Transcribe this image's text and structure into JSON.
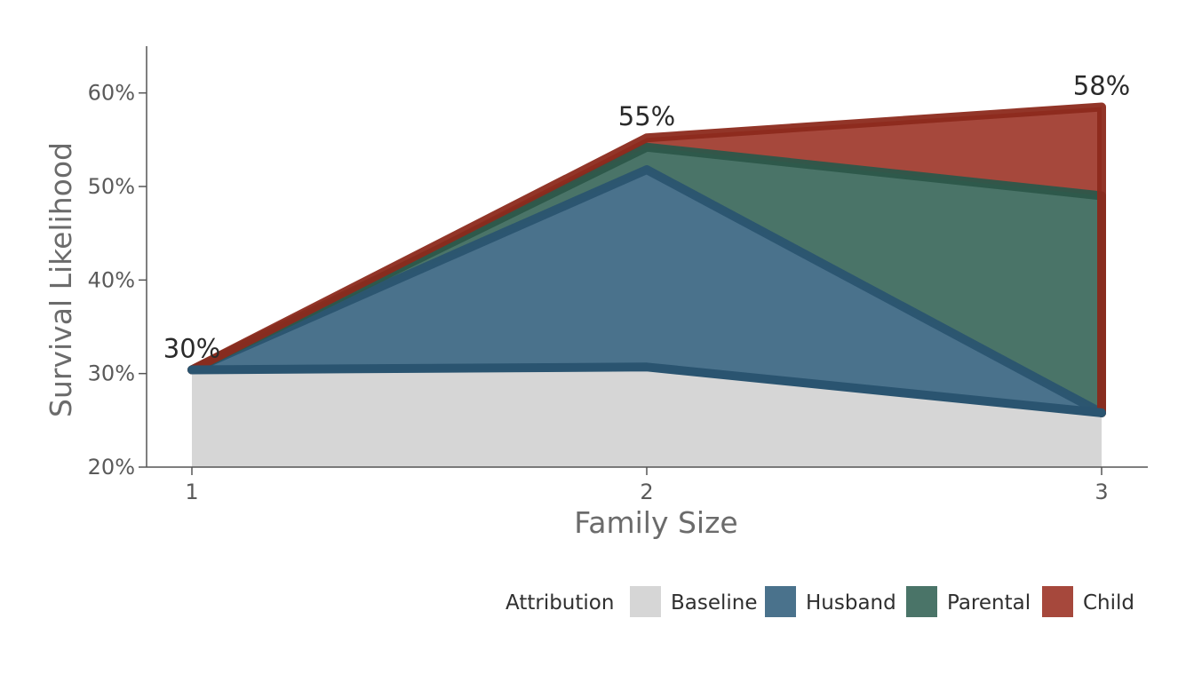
{
  "chart_data": {
    "type": "area",
    "title": "",
    "xlabel": "Family Size",
    "ylabel": "Survival Likelihood",
    "x": [
      1,
      2,
      3
    ],
    "xticks": [
      "1",
      "2",
      "3"
    ],
    "ylim": [
      20,
      65
    ],
    "yticks": [
      "20%",
      "30%",
      "40%",
      "50%",
      "60%"
    ],
    "ytick_values": [
      20,
      30,
      40,
      50,
      60
    ],
    "grid": false,
    "legend_title": "Attribution",
    "legend_position": "bottom-right",
    "series": [
      {
        "name": "Baseline",
        "values": [
          30.4,
          30.7,
          25.8
        ],
        "color": "#d6d6d6",
        "line": ""
      },
      {
        "name": "Husband",
        "values": [
          30.4,
          51.8,
          25.8
        ],
        "color": "#4a728c",
        "line": "#2a5470"
      },
      {
        "name": "Parental",
        "values": [
          30.4,
          54.2,
          49.0
        ],
        "color": "#4a7468",
        "line": "#2c574a"
      },
      {
        "name": "Child",
        "values": [
          30.4,
          55.2,
          58.5
        ],
        "color": "#a6483c",
        "line": "#8c2a1c"
      }
    ],
    "data_labels": [
      {
        "x": 1,
        "y": 30.4,
        "text": "30%"
      },
      {
        "x": 2,
        "y": 55.2,
        "text": "55%"
      },
      {
        "x": 3,
        "y": 58.5,
        "text": "58%"
      }
    ]
  }
}
